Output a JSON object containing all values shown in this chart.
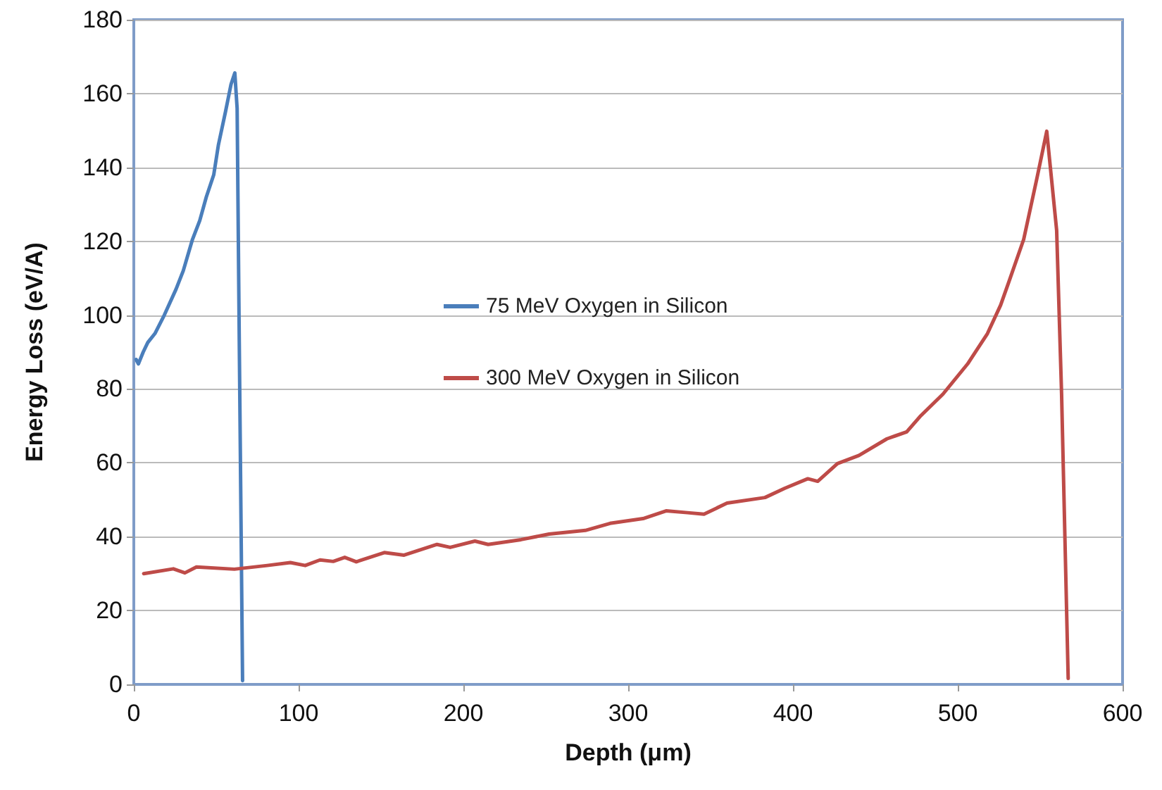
{
  "chart_data": {
    "type": "line",
    "xlabel": "Depth (μm)",
    "ylabel": "Energy Loss (eV/A)",
    "xlim": [
      0,
      600
    ],
    "xticks": [
      0,
      100,
      200,
      300,
      400,
      500,
      600
    ],
    "ylim": [
      0,
      180
    ],
    "yticks": [
      0,
      20,
      40,
      60,
      80,
      100,
      120,
      140,
      160,
      180
    ],
    "grid": "y",
    "legend": "center",
    "marker": "none",
    "line_style": "solid",
    "series": [
      {
        "name": "75 MeV Oxygen in Silicon",
        "color": "#4a7ebb",
        "x": [
          1.4,
          2.8,
          5.7,
          8.5,
          12.8,
          18.5,
          25.6,
          30,
          35.6,
          40,
          44,
          48.5,
          51.3,
          55.6,
          59,
          61.3,
          62.7,
          64,
          66
        ],
        "values": [
          88,
          86.8,
          90,
          92.6,
          95,
          100,
          107,
          112,
          120.5,
          125.6,
          132,
          138,
          146,
          155,
          162.5,
          165.6,
          156,
          92.7,
          1
        ]
      },
      {
        "name": "300 MeV Oxygen in Silicon",
        "color": "#be4b48",
        "x": [
          6,
          24,
          31,
          38,
          61,
          81,
          95,
          104,
          113,
          121,
          128,
          135,
          152,
          164,
          184,
          192,
          207,
          215,
          235,
          252,
          274,
          289,
          309,
          323,
          336,
          346,
          360,
          383,
          395,
          409,
          415,
          427,
          440,
          457,
          469,
          477,
          491,
          506,
          518,
          526,
          531,
          540,
          548,
          554,
          560,
          563,
          567
        ],
        "values": [
          30,
          31.3,
          30.2,
          31.8,
          31.2,
          32.2,
          33,
          32.2,
          33.7,
          33.3,
          34.4,
          33.2,
          35.7,
          35,
          37.9,
          37.1,
          38.8,
          37.9,
          39.2,
          40.7,
          41.7,
          43.6,
          44.9,
          47,
          46.5,
          46.1,
          49.1,
          50.6,
          53.1,
          55.7,
          55,
          59.8,
          62,
          66.5,
          68.4,
          72.5,
          78.6,
          86.8,
          95,
          102.7,
          109,
          120.5,
          137,
          149.8,
          123,
          78.6,
          1.6
        ]
      }
    ]
  }
}
